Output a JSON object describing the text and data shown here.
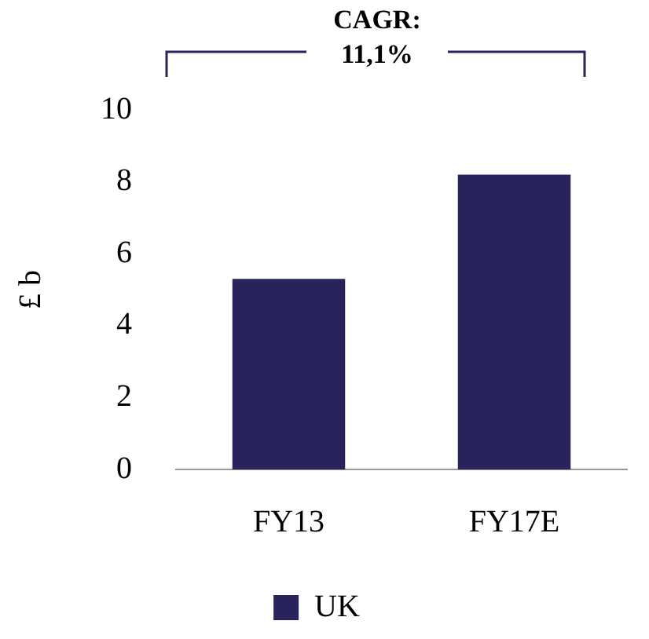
{
  "chart_data": {
    "type": "bar",
    "ylabel": "£ b",
    "annotations": [
      "CAGR: 11,1%"
    ],
    "categories": [
      "FY13",
      "FY17E"
    ],
    "series": [
      {
        "name": "UK",
        "color": "#29235c",
        "values": [
          5.3,
          8.2
        ]
      }
    ],
    "ylim": [
      0,
      10
    ],
    "yticks": [
      0,
      2,
      4,
      6,
      8,
      10
    ],
    "grid": false,
    "legend": "bottom"
  }
}
